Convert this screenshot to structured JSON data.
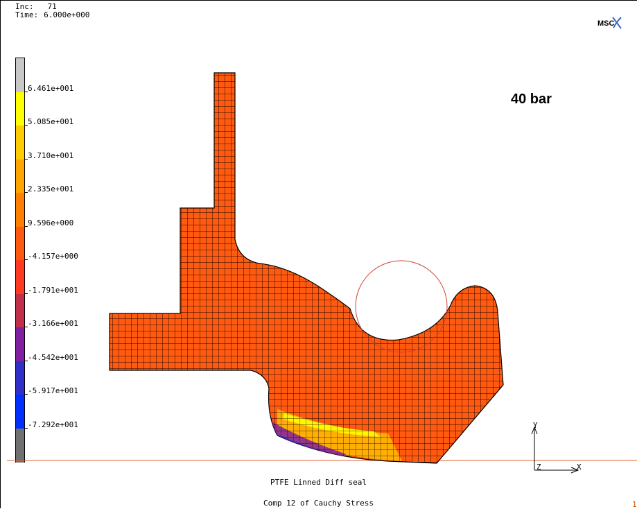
{
  "header": {
    "inc_label": "Inc:",
    "inc_value": "71",
    "time_label": "Time:",
    "time_value": "6.000e+000"
  },
  "logo": {
    "text": "MSC"
  },
  "annotation": {
    "text": "40 bar"
  },
  "legend": {
    "colors": [
      "#c8c8c8",
      "#ffff00",
      "#ffcc00",
      "#ffa500",
      "#ff7f00",
      "#ff5a10",
      "#ff3a20",
      "#c0304a",
      "#8020a0",
      "#3030c8",
      "#0030ff",
      "#707070"
    ],
    "labels": [
      "6.461e+001",
      "5.085e+001",
      "3.710e+001",
      "2.335e+001",
      "9.596e+000",
      "-4.157e+000",
      "-1.791e+001",
      "-3.166e+001",
      "-4.542e+001",
      "-5.917e+001",
      "-7.292e+001"
    ]
  },
  "axes": {
    "y_label": "Y",
    "z_label": "Z",
    "x_label": "X"
  },
  "footer": {
    "title": "PTFE Linned Diff seal",
    "subtitle": "Comp 12 of Cauchy Stress",
    "page": "1"
  },
  "colors": {
    "mesh_fill": "#ff5a10",
    "mesh_line": "#000000",
    "ground_line": "#e06030",
    "circle": "#d04030"
  }
}
